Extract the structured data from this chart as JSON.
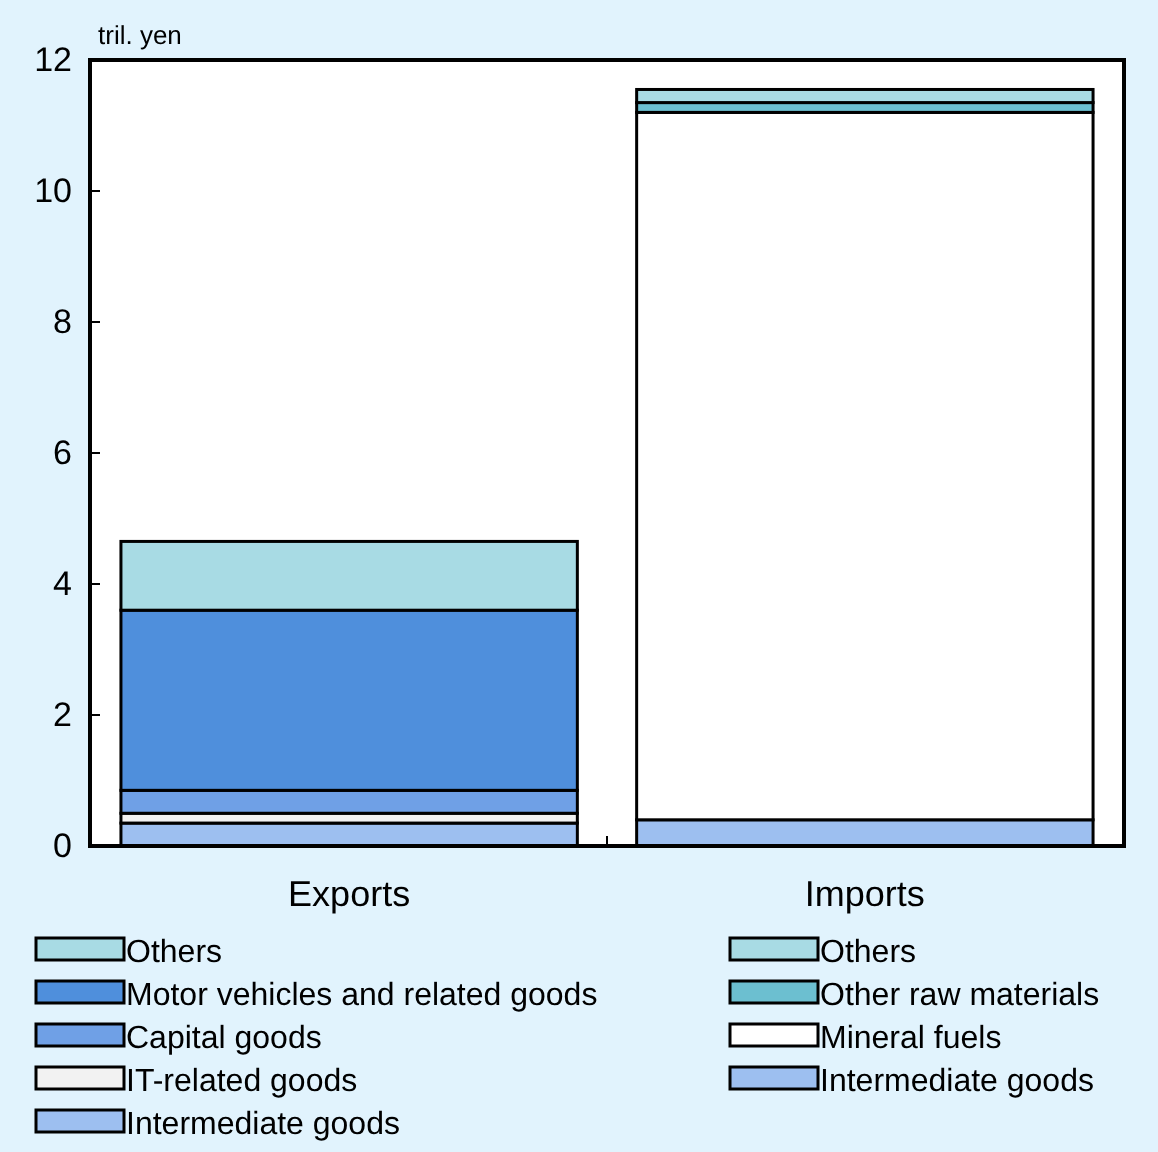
{
  "chart_data": {
    "type": "bar",
    "stacked": true,
    "ylabel": "tril. yen",
    "categories": [
      "Exports",
      "Imports"
    ],
    "ylim": [
      0,
      12
    ],
    "yticks": [
      0,
      2,
      4,
      6,
      8,
      10,
      12
    ],
    "grid": false,
    "legend": "bottom",
    "series": [
      {
        "name": "Intermediate goods",
        "color": "#9dbff0",
        "values": [
          0.35,
          null
        ]
      },
      {
        "name": "IT-related goods",
        "color": "#f2f2f2",
        "values": [
          0.15,
          null
        ]
      },
      {
        "name": "Capital goods",
        "color": "#6fa0e6",
        "values": [
          0.35,
          null
        ]
      },
      {
        "name": "Motor vehicles and related goods",
        "color": "#4f8fdc",
        "values": [
          2.75,
          null
        ]
      },
      {
        "name": "Others",
        "color": "#a8dbe4",
        "values": [
          1.05,
          null
        ]
      },
      {
        "name": "Intermediate goods",
        "color": "#9dbff0",
        "values": [
          null,
          0.4
        ]
      },
      {
        "name": "Mineral fuels",
        "color": "#ffffff",
        "values": [
          null,
          10.8
        ]
      },
      {
        "name": "Other raw materials",
        "color": "#6cbfd0",
        "values": [
          null,
          0.15
        ]
      },
      {
        "name": "Others",
        "color": "#a8dbe4",
        "values": [
          null,
          0.2
        ]
      }
    ]
  }
}
